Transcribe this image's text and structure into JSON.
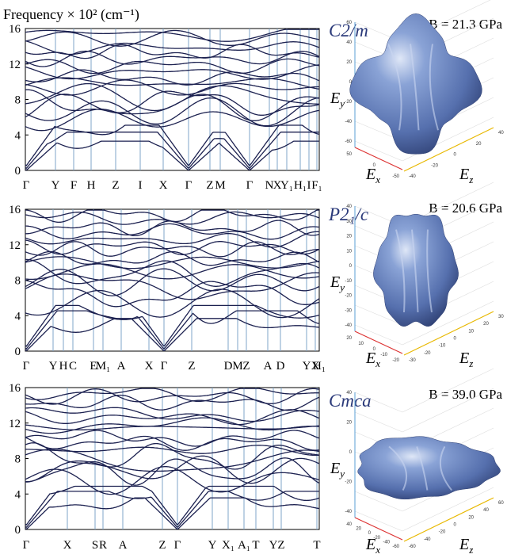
{
  "y_axis_label": "Frequency × 10² (cm⁻¹)",
  "panels": [
    {
      "space_group": "C2/m",
      "bulk_modulus": "B = 21.3 GPa",
      "yticks": [
        0,
        4,
        8,
        12,
        16
      ],
      "kpath": [
        "Γ",
        "Y",
        "F",
        "H",
        "Z",
        "I",
        "X",
        "Γ",
        "Z",
        "M",
        "Γ",
        "N",
        "X",
        "Y₁",
        "H₁",
        "I",
        "F₁"
      ],
      "axes": {
        "x": {
          "base": "E",
          "sub": "x"
        },
        "y": {
          "base": "E",
          "sub": "y"
        },
        "z": {
          "base": "E",
          "sub": "z"
        }
      },
      "ey_ticks": [
        60,
        40,
        20,
        0,
        -20,
        -40,
        -60
      ],
      "ex_ticks": [
        50,
        0,
        -50
      ],
      "ez_ticks": [
        -40,
        -20,
        0,
        20,
        40
      ]
    },
    {
      "space_group": "P2₁/c",
      "bulk_modulus": "B = 20.6 GPa",
      "yticks": [
        0,
        4,
        8,
        12,
        16
      ],
      "kpath": [
        "Γ",
        "Y",
        "H",
        "C",
        "E",
        "M₁",
        "A",
        "X",
        "Γ",
        "Z",
        "D",
        "M",
        "Z",
        "A",
        "D",
        "Y",
        "X",
        "H₁"
      ],
      "axes": {
        "x": {
          "base": "E",
          "sub": "x"
        },
        "y": {
          "base": "E",
          "sub": "y"
        },
        "z": {
          "base": "E",
          "sub": "z"
        }
      },
      "ey_ticks": [
        40,
        30,
        20,
        10,
        0,
        -10,
        -20,
        -30,
        -40
      ],
      "ex_ticks": [
        20,
        10,
        0,
        -10,
        -20
      ],
      "ez_ticks": [
        -30,
        -20,
        -10,
        0,
        10,
        20,
        30
      ]
    },
    {
      "space_group": "Cmca",
      "bulk_modulus": "B = 39.0 GPa",
      "yticks": [
        0,
        4,
        8,
        12,
        16
      ],
      "kpath": [
        "Γ",
        "X",
        "S",
        "R",
        "A",
        "Z",
        "Γ",
        "Y",
        "X₁",
        "A₁",
        "T",
        "Y",
        "Z",
        "T"
      ],
      "axes": {
        "x": {
          "base": "E",
          "sub": "x"
        },
        "y": {
          "base": "E",
          "sub": "y"
        },
        "z": {
          "base": "E",
          "sub": "z"
        }
      },
      "ey_ticks": [
        40,
        20,
        0,
        -20,
        -40
      ],
      "ex_ticks": [
        40,
        20,
        0,
        -20,
        -40,
        -60
      ],
      "ez_ticks": [
        -60,
        -40,
        -20,
        0,
        20,
        40,
        60
      ]
    }
  ]
}
